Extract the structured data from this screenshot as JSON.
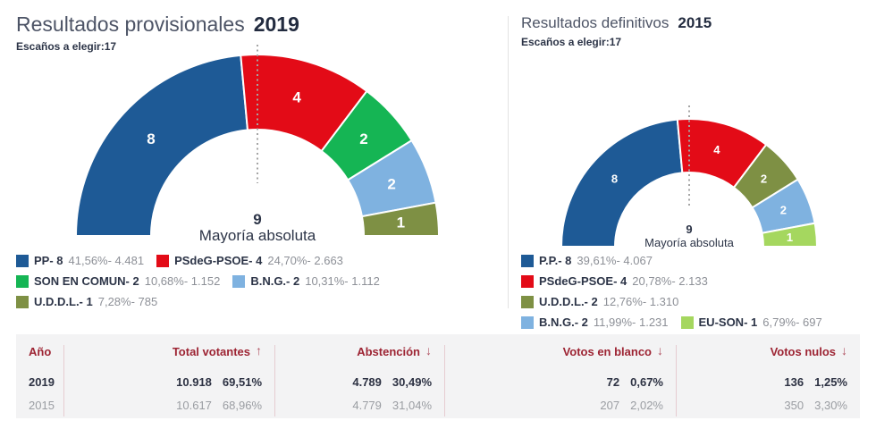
{
  "panels": [
    {
      "title": "Resultados provisionales",
      "year": "2019",
      "escanos_label": "Escaños a elegir:",
      "escanos_value": "17",
      "majority_value": "9",
      "majority_label": "Mayoría absoluta"
    },
    {
      "title": "Resultados definitivos",
      "year": "2015",
      "escanos_label": "Escaños a elegir:",
      "escanos_value": "17",
      "majority_value": "9",
      "majority_label": "Mayoría absoluta"
    }
  ],
  "chart_data": [
    {
      "type": "pie",
      "layout": "semicircle-donut",
      "title": "Resultados provisionales 2019",
      "total_seats": 17,
      "majority": 9,
      "series": [
        {
          "party": "PP",
          "seats": 8,
          "legend_label": "PP- 8",
          "legend_detail": "41,56%- 4.481",
          "percent": 41.56,
          "votes": 4481,
          "color": "#1e5a96"
        },
        {
          "party": "PSdeG-PSOE",
          "seats": 4,
          "legend_label": "PSdeG-PSOE- 4",
          "legend_detail": "24,70%- 2.663",
          "percent": 24.7,
          "votes": 2663,
          "color": "#e30b17"
        },
        {
          "party": "SON EN COMUN",
          "seats": 2,
          "legend_label": "SON EN COMUN- 2",
          "legend_detail": "10,68%- 1.152",
          "percent": 10.68,
          "votes": 1152,
          "color": "#15b554"
        },
        {
          "party": "B.N.G.",
          "seats": 2,
          "legend_label": "B.N.G.- 2",
          "legend_detail": "10,31%- 1.112",
          "percent": 10.31,
          "votes": 1112,
          "color": "#7fb2e0"
        },
        {
          "party": "U.D.D.L.",
          "seats": 1,
          "legend_label": "U.D.D.L.- 1",
          "legend_detail": "7,28%- 785",
          "percent": 7.28,
          "votes": 785,
          "color": "#7e9044"
        }
      ]
    },
    {
      "type": "pie",
      "layout": "semicircle-donut",
      "title": "Resultados definitivos 2015",
      "total_seats": 17,
      "majority": 9,
      "series": [
        {
          "party": "P.P.",
          "seats": 8,
          "legend_label": "P.P.- 8",
          "legend_detail": "39,61%- 4.067",
          "percent": 39.61,
          "votes": 4067,
          "color": "#1e5a96"
        },
        {
          "party": "PSdeG-PSOE",
          "seats": 4,
          "legend_label": "PSdeG-PSOE- 4",
          "legend_detail": "20,78%- 2.133",
          "percent": 20.78,
          "votes": 2133,
          "color": "#e30b17"
        },
        {
          "party": "U.D.D.L.",
          "seats": 2,
          "legend_label": "U.D.D.L.- 2",
          "legend_detail": "12,76%- 1.310",
          "percent": 12.76,
          "votes": 1310,
          "color": "#7e9044"
        },
        {
          "party": "B.N.G.",
          "seats": 2,
          "legend_label": "B.N.G.- 2",
          "legend_detail": "11,99%- 1.231",
          "percent": 11.99,
          "votes": 1231,
          "color": "#7fb2e0"
        },
        {
          "party": "EU-SON",
          "seats": 1,
          "legend_label": "EU-SON- 1",
          "legend_detail": "6,79%- 697",
          "percent": 6.79,
          "votes": 697,
          "color": "#a5d75f"
        }
      ]
    }
  ],
  "table": {
    "columns": [
      {
        "label": "Año",
        "sort": ""
      },
      {
        "label": "Total votantes",
        "sort": "↑"
      },
      {
        "label": "Abstención",
        "sort": "↓"
      },
      {
        "label": "Votos en blanco",
        "sort": "↓"
      },
      {
        "label": "Votos nulos",
        "sort": "↓"
      }
    ],
    "rows": [
      {
        "year": "2019",
        "highlight": true,
        "cells": [
          [
            "10.918",
            "69,51%"
          ],
          [
            "4.789",
            "30,49%"
          ],
          [
            "72",
            "0,67%"
          ],
          [
            "136",
            "1,25%"
          ]
        ]
      },
      {
        "year": "2015",
        "highlight": false,
        "cells": [
          [
            "10.617",
            "68,96%"
          ],
          [
            "4.779",
            "31,04%"
          ],
          [
            "207",
            "2,02%"
          ],
          [
            "350",
            "3,30%"
          ]
        ]
      }
    ]
  }
}
